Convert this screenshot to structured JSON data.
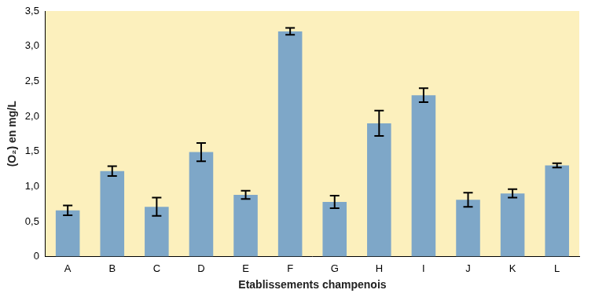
{
  "chart_data": {
    "type": "bar",
    "x_label": "Etablissements champenois",
    "y_label": "(O₂) en mg/L",
    "categories": [
      "A",
      "B",
      "C",
      "D",
      "E",
      "F",
      "G",
      "H",
      "I",
      "J",
      "K",
      "L"
    ],
    "values": [
      0.66,
      1.22,
      0.71,
      1.49,
      0.88,
      3.21,
      0.78,
      1.9,
      2.3,
      0.81,
      0.9,
      1.3
    ],
    "errors": [
      0.07,
      0.07,
      0.13,
      0.13,
      0.06,
      0.05,
      0.09,
      0.18,
      0.1,
      0.1,
      0.06,
      0.03
    ],
    "color": "#7ea7c8",
    "ylim": [
      0,
      3.5
    ],
    "yticks": [
      0,
      {
        "value": 0.5,
        "label": "0,5"
      },
      {
        "value": 1,
        "label": "1,0"
      },
      {
        "value": 1.5,
        "label": "1,5"
      },
      {
        "value": 2,
        "label": "2,0"
      },
      {
        "value": 2.5,
        "label": "2,5"
      },
      {
        "value": 3,
        "label": "3,0"
      },
      {
        "value": 3.5,
        "label": "3,5"
      }
    ],
    "grid": false
  }
}
